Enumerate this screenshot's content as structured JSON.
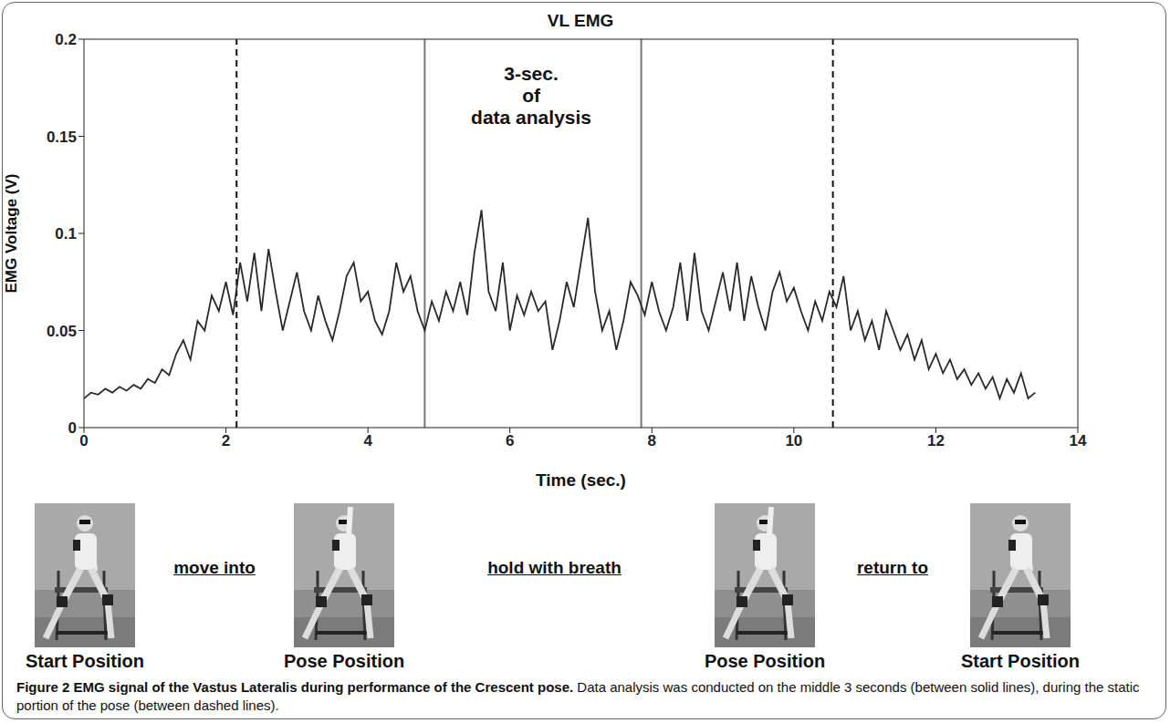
{
  "chart_data": {
    "type": "line",
    "title": "VL EMG",
    "x_label": "Time (sec.)",
    "y_label": "EMG Voltage (V)",
    "xlim": [
      0,
      14
    ],
    "xticks": [
      0,
      2,
      4,
      6,
      8,
      10,
      12,
      14
    ],
    "ylim": [
      0,
      0.2
    ],
    "yticks": [
      0,
      0.05,
      0.1,
      0.15,
      0.2
    ],
    "grid": false,
    "color": "#2a2a2a",
    "x": [
      0,
      0.1,
      0.2,
      0.3,
      0.4,
      0.5,
      0.6,
      0.7,
      0.8,
      0.9,
      1,
      1.1,
      1.2,
      1.3,
      1.4,
      1.5,
      1.6,
      1.7,
      1.8,
      1.9,
      2,
      2.1,
      2.2,
      2.3,
      2.4,
      2.5,
      2.6,
      2.7,
      2.8,
      2.9,
      3,
      3.1,
      3.2,
      3.3,
      3.4,
      3.5,
      3.6,
      3.7,
      3.8,
      3.9,
      4,
      4.1,
      4.2,
      4.3,
      4.4,
      4.5,
      4.6,
      4.7,
      4.8,
      4.9,
      5,
      5.1,
      5.2,
      5.3,
      5.4,
      5.5,
      5.6,
      5.7,
      5.8,
      5.9,
      6,
      6.1,
      6.2,
      6.3,
      6.4,
      6.5,
      6.6,
      6.7,
      6.8,
      6.9,
      7,
      7.1,
      7.2,
      7.3,
      7.4,
      7.5,
      7.6,
      7.7,
      7.8,
      7.9,
      8,
      8.1,
      8.2,
      8.3,
      8.4,
      8.5,
      8.6,
      8.7,
      8.8,
      8.9,
      9,
      9.1,
      9.2,
      9.3,
      9.4,
      9.5,
      9.6,
      9.7,
      9.8,
      9.9,
      10,
      10.1,
      10.2,
      10.3,
      10.4,
      10.5,
      10.6,
      10.7,
      10.8,
      10.9,
      11,
      11.1,
      11.2,
      11.3,
      11.4,
      11.5,
      11.6,
      11.7,
      11.8,
      11.9,
      12,
      12.1,
      12.2,
      12.3,
      12.4,
      12.5,
      12.6,
      12.7,
      12.8,
      12.9,
      13,
      13.1,
      13.2,
      13.3,
      13.4
    ],
    "values": [
      0.015,
      0.018,
      0.017,
      0.02,
      0.018,
      0.021,
      0.019,
      0.022,
      0.02,
      0.025,
      0.023,
      0.03,
      0.027,
      0.038,
      0.045,
      0.035,
      0.055,
      0.05,
      0.068,
      0.06,
      0.075,
      0.058,
      0.085,
      0.065,
      0.09,
      0.06,
      0.092,
      0.07,
      0.05,
      0.065,
      0.08,
      0.06,
      0.05,
      0.068,
      0.055,
      0.045,
      0.06,
      0.078,
      0.085,
      0.065,
      0.07,
      0.055,
      0.048,
      0.06,
      0.085,
      0.07,
      0.078,
      0.06,
      0.05,
      0.065,
      0.055,
      0.07,
      0.06,
      0.075,
      0.058,
      0.09,
      0.112,
      0.07,
      0.06,
      0.085,
      0.05,
      0.068,
      0.058,
      0.07,
      0.06,
      0.065,
      0.04,
      0.055,
      0.075,
      0.062,
      0.085,
      0.108,
      0.07,
      0.05,
      0.06,
      0.04,
      0.055,
      0.075,
      0.068,
      0.058,
      0.075,
      0.06,
      0.05,
      0.062,
      0.085,
      0.055,
      0.09,
      0.06,
      0.05,
      0.065,
      0.08,
      0.06,
      0.085,
      0.055,
      0.078,
      0.062,
      0.05,
      0.07,
      0.08,
      0.065,
      0.072,
      0.06,
      0.05,
      0.065,
      0.055,
      0.07,
      0.062,
      0.078,
      0.05,
      0.06,
      0.045,
      0.055,
      0.04,
      0.06,
      0.05,
      0.04,
      0.048,
      0.035,
      0.045,
      0.03,
      0.038,
      0.028,
      0.035,
      0.025,
      0.03,
      0.022,
      0.028,
      0.02,
      0.026,
      0.015,
      0.025,
      0.018,
      0.028,
      0.015,
      0.018
    ],
    "reference_lines": [
      {
        "x": 2.15,
        "line_style": "dashed"
      },
      {
        "x": 4.8,
        "line_style": "solid"
      },
      {
        "x": 7.85,
        "line_style": "solid"
      },
      {
        "x": 10.55,
        "line_style": "dashed"
      }
    ],
    "annotation": {
      "x": 6.3,
      "y": 0.17,
      "lines": [
        "3-sec.",
        "of",
        "data analysis"
      ]
    }
  },
  "figure": {
    "photos": [
      "Start Position",
      "Pose Position",
      "Pose Position",
      "Start Position"
    ],
    "transitions": [
      "move into",
      "hold with breath",
      "return to"
    ],
    "caption": {
      "label": "Figure 2",
      "title": "EMG signal of the Vastus Lateralis during performance of the Crescent pose.",
      "text": "Data analysis was conducted on the middle 3 seconds (between solid lines), during the static portion of the pose (between dashed lines)."
    }
  }
}
